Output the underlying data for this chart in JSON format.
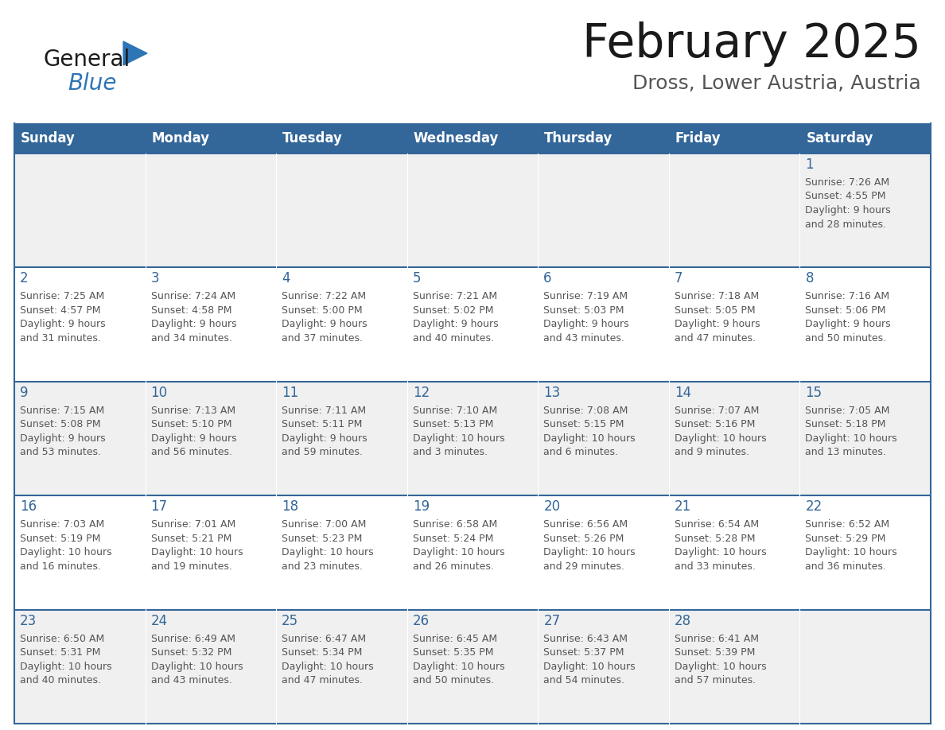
{
  "title": "February 2025",
  "subtitle": "Dross, Lower Austria, Austria",
  "header_bg": "#336699",
  "header_text_color": "#FFFFFF",
  "cell_bg_odd": "#F0F0F0",
  "cell_bg_even": "#FFFFFF",
  "cell_border_color": "#336699",
  "day_number_color": "#336699",
  "info_text_color": "#555555",
  "days_of_week": [
    "Sunday",
    "Monday",
    "Tuesday",
    "Wednesday",
    "Thursday",
    "Friday",
    "Saturday"
  ],
  "weeks": [
    [
      {
        "day": null,
        "info": null
      },
      {
        "day": null,
        "info": null
      },
      {
        "day": null,
        "info": null
      },
      {
        "day": null,
        "info": null
      },
      {
        "day": null,
        "info": null
      },
      {
        "day": null,
        "info": null
      },
      {
        "day": 1,
        "info": "Sunrise: 7:26 AM\nSunset: 4:55 PM\nDaylight: 9 hours\nand 28 minutes."
      }
    ],
    [
      {
        "day": 2,
        "info": "Sunrise: 7:25 AM\nSunset: 4:57 PM\nDaylight: 9 hours\nand 31 minutes."
      },
      {
        "day": 3,
        "info": "Sunrise: 7:24 AM\nSunset: 4:58 PM\nDaylight: 9 hours\nand 34 minutes."
      },
      {
        "day": 4,
        "info": "Sunrise: 7:22 AM\nSunset: 5:00 PM\nDaylight: 9 hours\nand 37 minutes."
      },
      {
        "day": 5,
        "info": "Sunrise: 7:21 AM\nSunset: 5:02 PM\nDaylight: 9 hours\nand 40 minutes."
      },
      {
        "day": 6,
        "info": "Sunrise: 7:19 AM\nSunset: 5:03 PM\nDaylight: 9 hours\nand 43 minutes."
      },
      {
        "day": 7,
        "info": "Sunrise: 7:18 AM\nSunset: 5:05 PM\nDaylight: 9 hours\nand 47 minutes."
      },
      {
        "day": 8,
        "info": "Sunrise: 7:16 AM\nSunset: 5:06 PM\nDaylight: 9 hours\nand 50 minutes."
      }
    ],
    [
      {
        "day": 9,
        "info": "Sunrise: 7:15 AM\nSunset: 5:08 PM\nDaylight: 9 hours\nand 53 minutes."
      },
      {
        "day": 10,
        "info": "Sunrise: 7:13 AM\nSunset: 5:10 PM\nDaylight: 9 hours\nand 56 minutes."
      },
      {
        "day": 11,
        "info": "Sunrise: 7:11 AM\nSunset: 5:11 PM\nDaylight: 9 hours\nand 59 minutes."
      },
      {
        "day": 12,
        "info": "Sunrise: 7:10 AM\nSunset: 5:13 PM\nDaylight: 10 hours\nand 3 minutes."
      },
      {
        "day": 13,
        "info": "Sunrise: 7:08 AM\nSunset: 5:15 PM\nDaylight: 10 hours\nand 6 minutes."
      },
      {
        "day": 14,
        "info": "Sunrise: 7:07 AM\nSunset: 5:16 PM\nDaylight: 10 hours\nand 9 minutes."
      },
      {
        "day": 15,
        "info": "Sunrise: 7:05 AM\nSunset: 5:18 PM\nDaylight: 10 hours\nand 13 minutes."
      }
    ],
    [
      {
        "day": 16,
        "info": "Sunrise: 7:03 AM\nSunset: 5:19 PM\nDaylight: 10 hours\nand 16 minutes."
      },
      {
        "day": 17,
        "info": "Sunrise: 7:01 AM\nSunset: 5:21 PM\nDaylight: 10 hours\nand 19 minutes."
      },
      {
        "day": 18,
        "info": "Sunrise: 7:00 AM\nSunset: 5:23 PM\nDaylight: 10 hours\nand 23 minutes."
      },
      {
        "day": 19,
        "info": "Sunrise: 6:58 AM\nSunset: 5:24 PM\nDaylight: 10 hours\nand 26 minutes."
      },
      {
        "day": 20,
        "info": "Sunrise: 6:56 AM\nSunset: 5:26 PM\nDaylight: 10 hours\nand 29 minutes."
      },
      {
        "day": 21,
        "info": "Sunrise: 6:54 AM\nSunset: 5:28 PM\nDaylight: 10 hours\nand 33 minutes."
      },
      {
        "day": 22,
        "info": "Sunrise: 6:52 AM\nSunset: 5:29 PM\nDaylight: 10 hours\nand 36 minutes."
      }
    ],
    [
      {
        "day": 23,
        "info": "Sunrise: 6:50 AM\nSunset: 5:31 PM\nDaylight: 10 hours\nand 40 minutes."
      },
      {
        "day": 24,
        "info": "Sunrise: 6:49 AM\nSunset: 5:32 PM\nDaylight: 10 hours\nand 43 minutes."
      },
      {
        "day": 25,
        "info": "Sunrise: 6:47 AM\nSunset: 5:34 PM\nDaylight: 10 hours\nand 47 minutes."
      },
      {
        "day": 26,
        "info": "Sunrise: 6:45 AM\nSunset: 5:35 PM\nDaylight: 10 hours\nand 50 minutes."
      },
      {
        "day": 27,
        "info": "Sunrise: 6:43 AM\nSunset: 5:37 PM\nDaylight: 10 hours\nand 54 minutes."
      },
      {
        "day": 28,
        "info": "Sunrise: 6:41 AM\nSunset: 5:39 PM\nDaylight: 10 hours\nand 57 minutes."
      },
      {
        "day": null,
        "info": null
      }
    ]
  ],
  "logo_general_color": "#1a1a1a",
  "logo_blue_color": "#2E75B6",
  "logo_triangle_color": "#2E75B6",
  "title_fontsize": 42,
  "subtitle_fontsize": 18,
  "header_fontsize": 12,
  "day_num_fontsize": 12,
  "info_fontsize": 9
}
